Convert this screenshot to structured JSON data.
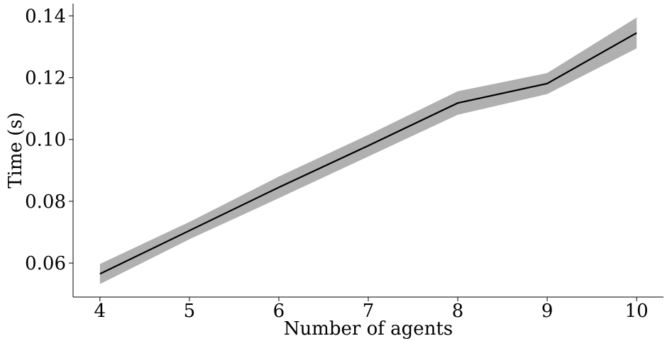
{
  "chart_data": {
    "type": "line",
    "xlabel": "Number of agents",
    "ylabel": "Time (s)",
    "xlim": [
      3.7,
      10.3
    ],
    "ylim": [
      0.049,
      0.144
    ],
    "x_ticks": [
      4,
      5,
      6,
      7,
      8,
      9,
      10
    ],
    "y_ticks": [
      0.06,
      0.08,
      0.1,
      0.12,
      0.14
    ],
    "y_tick_labels": [
      "0.06",
      "0.08",
      "0.10",
      "0.12",
      "0.14"
    ],
    "grid": false,
    "series": [
      {
        "x": [
          4,
          5,
          6,
          7,
          8,
          9,
          10
        ],
        "y": [
          0.0565,
          0.0705,
          0.0845,
          0.098,
          0.1118,
          0.1181,
          0.1345
        ],
        "lower": [
          0.0532,
          0.0677,
          0.081,
          0.0945,
          0.108,
          0.1147,
          0.1295
        ],
        "upper": [
          0.0597,
          0.0733,
          0.088,
          0.1015,
          0.1156,
          0.1215,
          0.1395
        ],
        "color": "#000000",
        "band_color": "#b0b0b0"
      }
    ]
  }
}
